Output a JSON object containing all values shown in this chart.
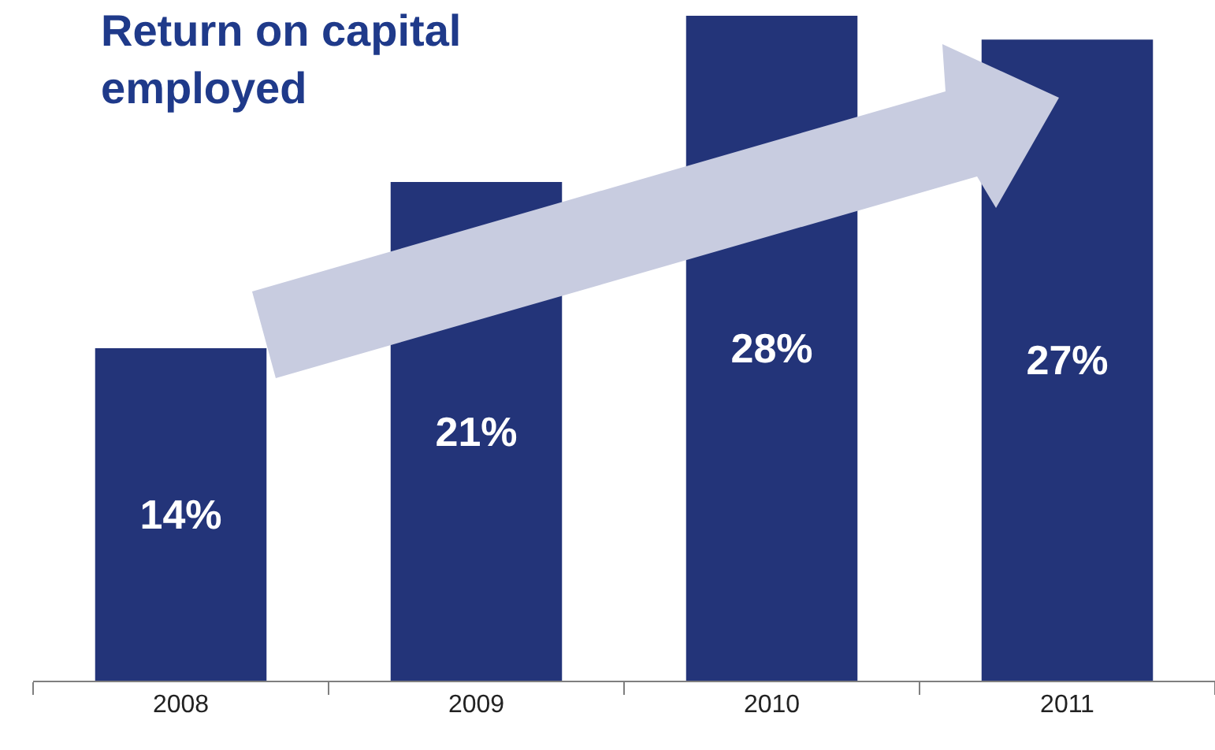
{
  "chart_data": {
    "type": "bar",
    "title": "Return on capital\nemployed",
    "categories": [
      "2008",
      "2009",
      "2010",
      "2011"
    ],
    "values": [
      14,
      21,
      28,
      27
    ],
    "value_labels": [
      "14%",
      "21%",
      "28%",
      "27%"
    ],
    "color": "#233479",
    "legend": false
  }
}
